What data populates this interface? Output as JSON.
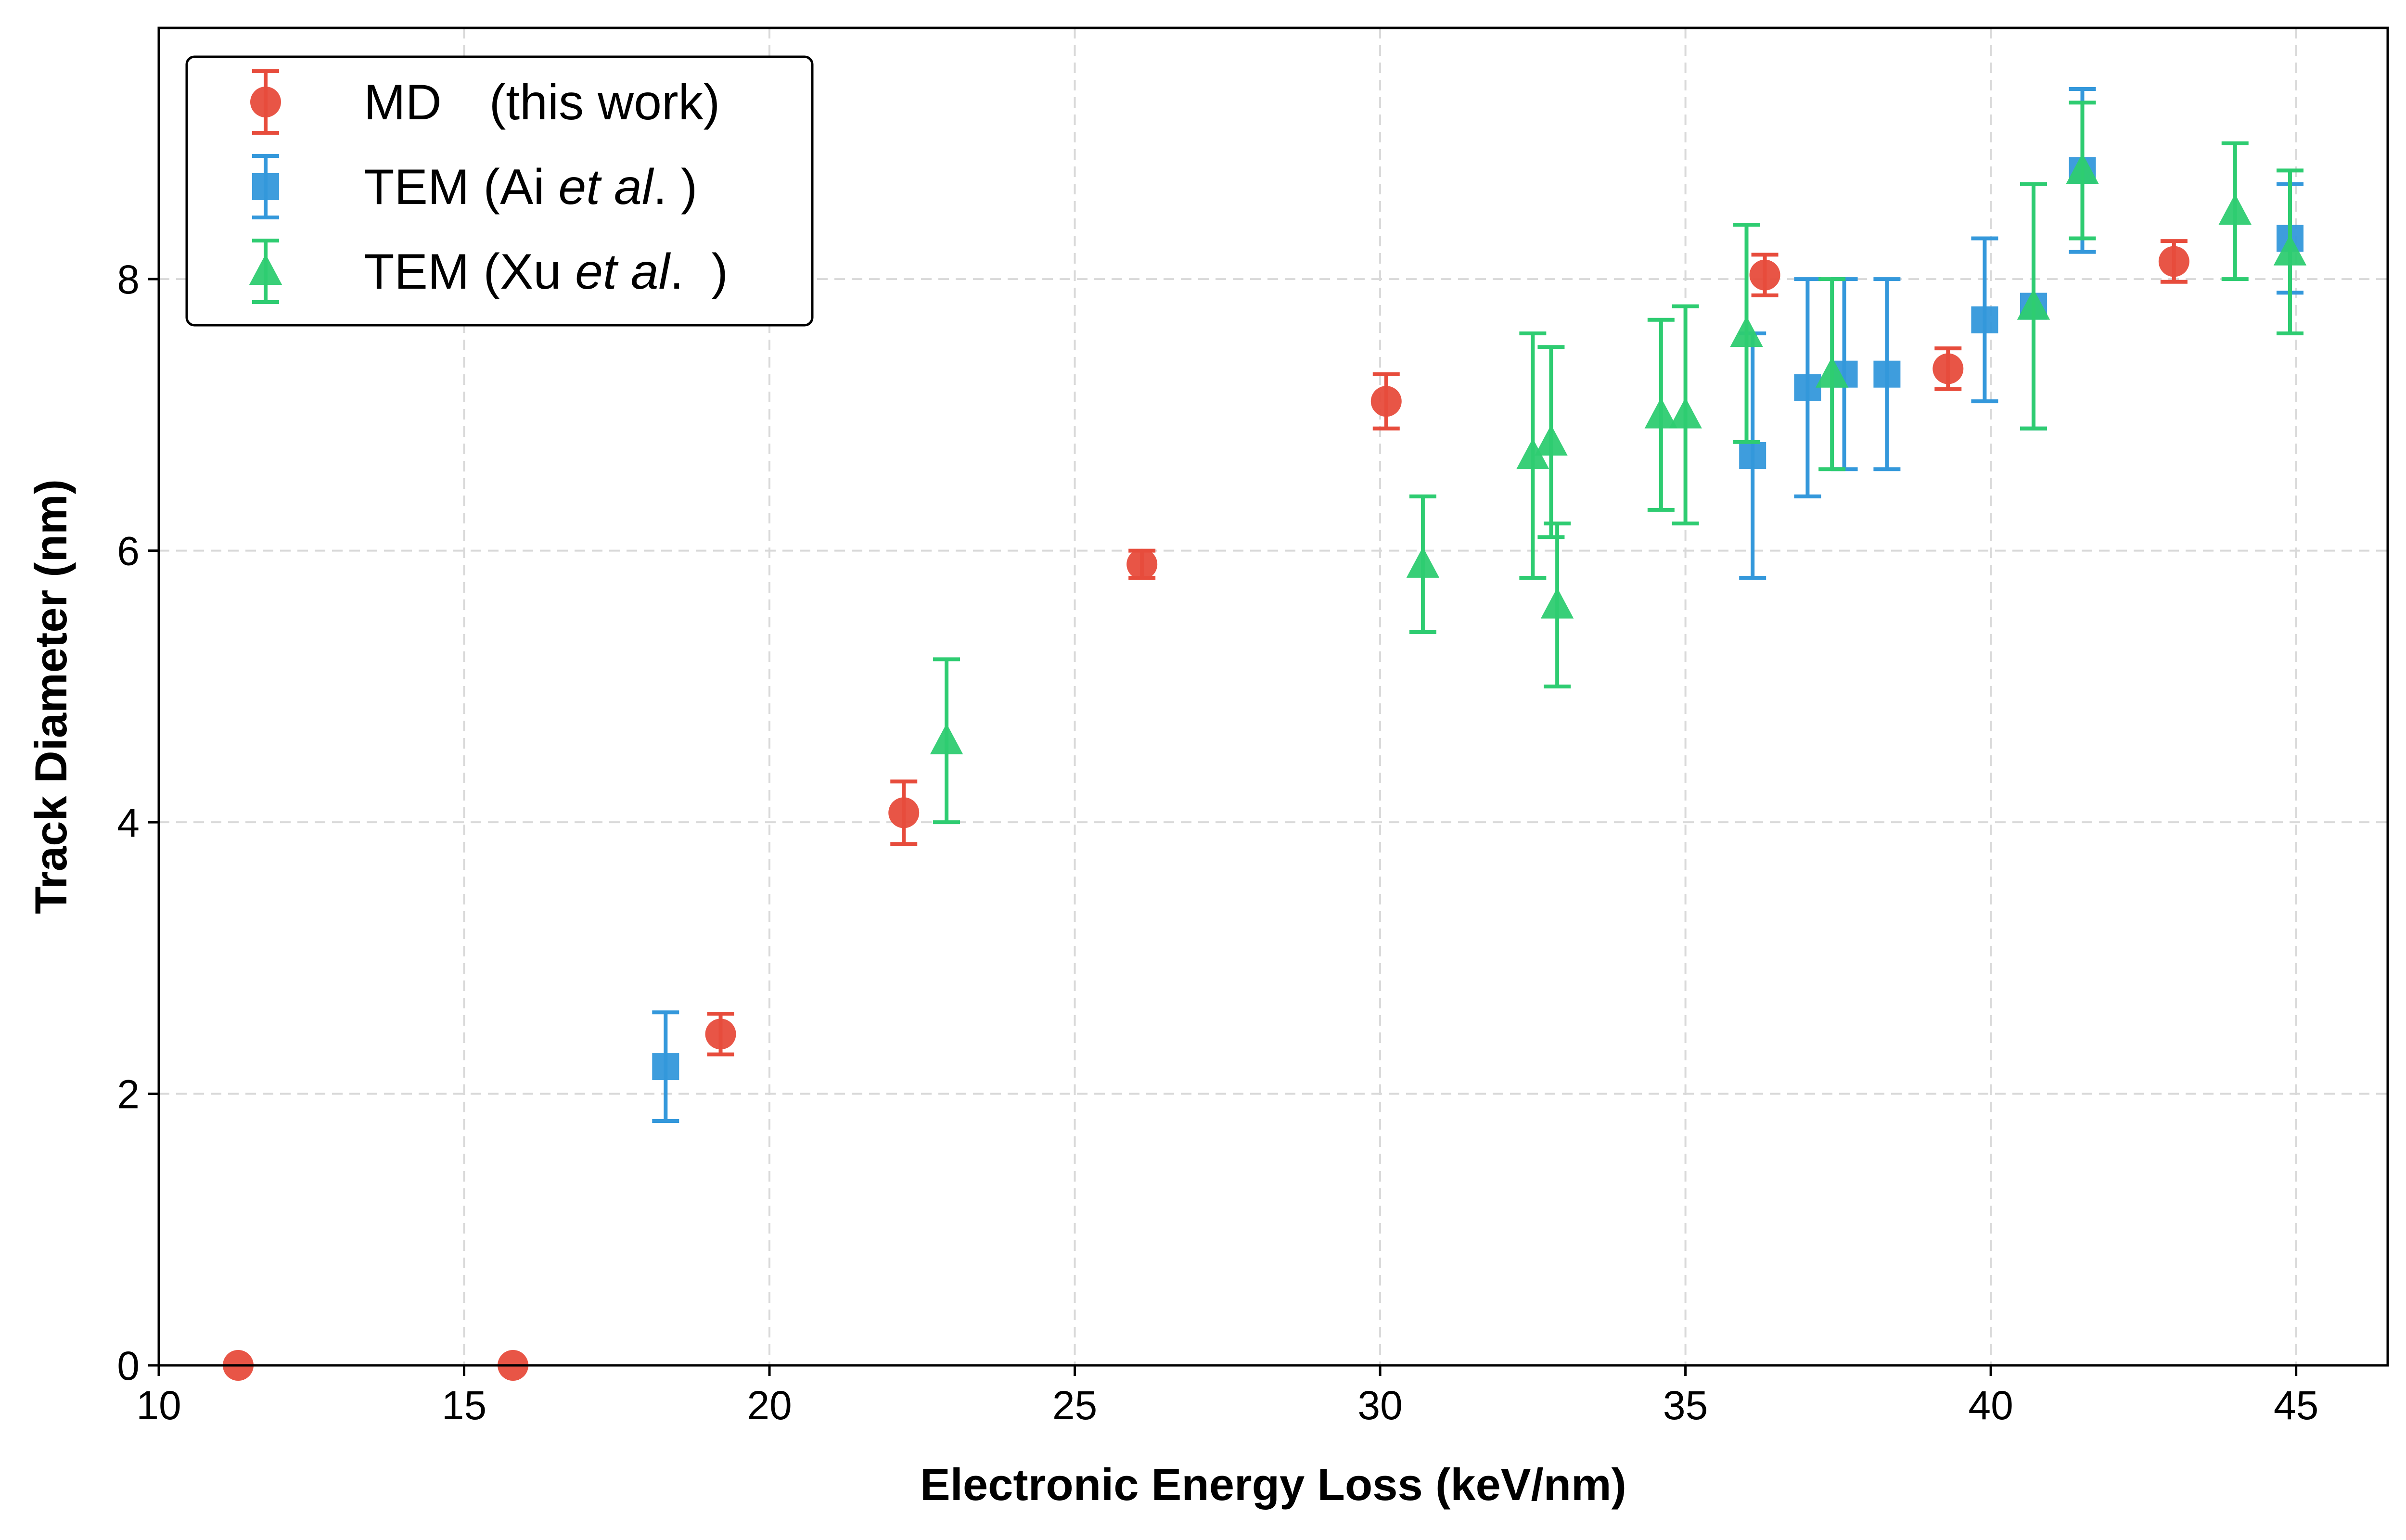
{
  "chart_data": {
    "type": "scatter",
    "title": "",
    "xlabel": "Electronic Energy Loss (keV/nm)",
    "ylabel": "Track Diameter (nm)",
    "xlim": [
      10,
      46.5
    ],
    "ylim": [
      0,
      9.85
    ],
    "xticks": [
      10,
      15,
      20,
      25,
      30,
      35,
      40,
      45
    ],
    "yticks": [
      0,
      2,
      4,
      6,
      8
    ],
    "grid": true,
    "legend_position": "top-left",
    "series": [
      {
        "name": "MD (this work)",
        "legend_main": "MD",
        "legend_paren": "(this work)",
        "marker": "circle",
        "color": "#e74c3c",
        "points": [
          {
            "x": 11.3,
            "y": 0.0,
            "err": 0.0
          },
          {
            "x": 15.8,
            "y": 0.0,
            "err": 0.0
          },
          {
            "x": 19.2,
            "y": 2.44,
            "err": 0.15
          },
          {
            "x": 22.2,
            "y": 4.07,
            "err": 0.23
          },
          {
            "x": 26.1,
            "y": 5.9,
            "err": 0.1
          },
          {
            "x": 30.1,
            "y": 7.1,
            "err": 0.2
          },
          {
            "x": 36.3,
            "y": 8.03,
            "err": 0.15
          },
          {
            "x": 39.3,
            "y": 7.34,
            "err": 0.15
          },
          {
            "x": 43.0,
            "y": 8.13,
            "err": 0.15
          }
        ]
      },
      {
        "name": "TEM (Ai et al.)",
        "legend_main": "TEM (Ai ",
        "legend_italic": "et al",
        "legend_tail": ". )",
        "marker": "square",
        "color": "#3498db",
        "points": [
          {
            "x": 18.3,
            "y": 2.2,
            "err": 0.4
          },
          {
            "x": 36.1,
            "y": 6.7,
            "err": 0.9
          },
          {
            "x": 37.0,
            "y": 7.2,
            "err": 0.8
          },
          {
            "x": 37.6,
            "y": 7.3,
            "err": 0.7
          },
          {
            "x": 38.3,
            "y": 7.3,
            "err": 0.7
          },
          {
            "x": 39.9,
            "y": 7.7,
            "err": 0.6
          },
          {
            "x": 40.7,
            "y": 7.8,
            "err": 0.9
          },
          {
            "x": 41.5,
            "y": 8.8,
            "err": 0.6
          },
          {
            "x": 44.9,
            "y": 8.3,
            "err": 0.4
          }
        ]
      },
      {
        "name": "TEM (Xu et al.)",
        "legend_main": "TEM (Xu ",
        "legend_italic": "et al",
        "legend_tail": ".  )",
        "marker": "triangle",
        "color": "#2ecc71",
        "points": [
          {
            "x": 22.9,
            "y": 4.6,
            "err": 0.6
          },
          {
            "x": 30.7,
            "y": 5.9,
            "err": 0.5
          },
          {
            "x": 32.5,
            "y": 6.7,
            "err": 0.9
          },
          {
            "x": 32.8,
            "y": 6.8,
            "err": 0.7
          },
          {
            "x": 32.9,
            "y": 5.6,
            "err": 0.6
          },
          {
            "x": 34.6,
            "y": 7.0,
            "err": 0.7
          },
          {
            "x": 35.0,
            "y": 7.0,
            "err": 0.8
          },
          {
            "x": 36.0,
            "y": 7.6,
            "err": 0.8
          },
          {
            "x": 37.4,
            "y": 7.3,
            "err": 0.7
          },
          {
            "x": 40.7,
            "y": 7.8,
            "err": 0.9
          },
          {
            "x": 41.5,
            "y": 8.8,
            "err": 0.5
          },
          {
            "x": 44.0,
            "y": 8.5,
            "err": 0.5
          },
          {
            "x": 44.9,
            "y": 8.2,
            "err": 0.6
          }
        ]
      }
    ]
  }
}
